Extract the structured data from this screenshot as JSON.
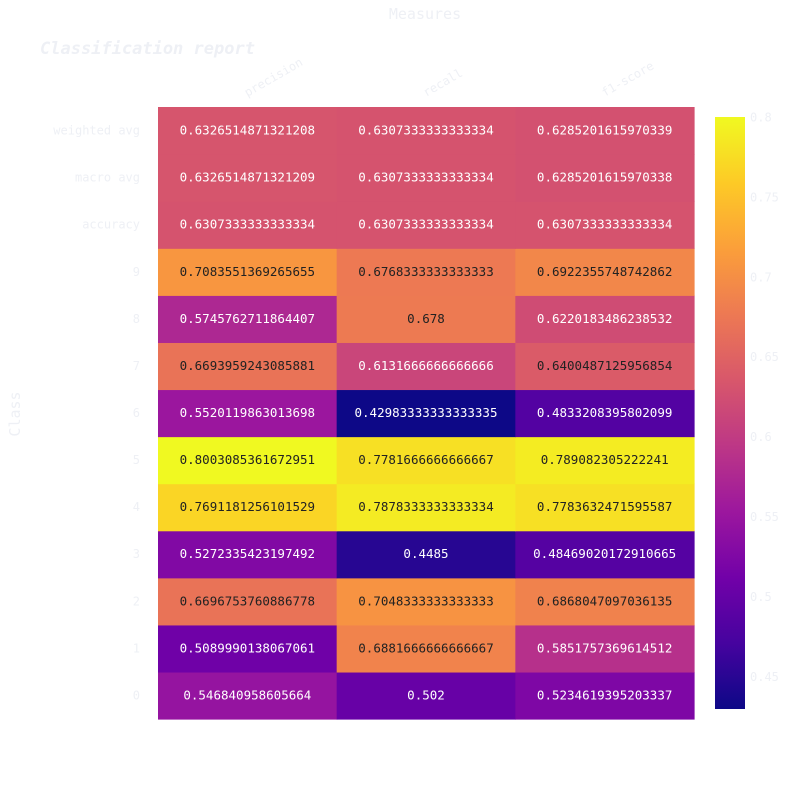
{
  "colors": {
    "muted_text": "#eef0f5",
    "light_cell_text": "#ffffff",
    "dark_cell_text": "#222222",
    "scale": [
      "#0d0887",
      "#46039f",
      "#7201a8",
      "#9c179e",
      "#bd3786",
      "#d8576b",
      "#ed7953",
      "#fb9f3a",
      "#fdca26",
      "#f0f921"
    ]
  },
  "chart_data": {
    "type": "heatmap",
    "title": "Classification report",
    "xlabel": "Measures",
    "ylabel": "Class",
    "x": [
      "precision",
      "recall",
      "f1-score"
    ],
    "y": [
      "0",
      "1",
      "2",
      "3",
      "4",
      "5",
      "6",
      "7",
      "8",
      "9",
      "accuracy",
      "macro avg",
      "weighted avg"
    ],
    "cells": [
      [
        "0.546840958605664",
        "0.502",
        "0.5234619395203337"
      ],
      [
        "0.5089990138067061",
        "0.6881666666666667",
        "0.5851757369614512"
      ],
      [
        "0.6696753760886778",
        "0.7048333333333333",
        "0.6868047097036135"
      ],
      [
        "0.5272335423197492",
        "0.4485",
        "0.48469020172910665"
      ],
      [
        "0.7691181256101529",
        "0.7878333333333334",
        "0.7783632471595587"
      ],
      [
        "0.8003085361672951",
        "0.7781666666666667",
        "0.789082305222241"
      ],
      [
        "0.5520119863013698",
        "0.42983333333333335",
        "0.4833208395802099"
      ],
      [
        "0.6693959243085881",
        "0.6131666666666666",
        "0.6400487125956854"
      ],
      [
        "0.5745762711864407",
        "0.678",
        "0.6220183486238532"
      ],
      [
        "0.7083551369265655",
        "0.6768333333333333",
        "0.6922355748742862"
      ],
      [
        "0.6307333333333334",
        "0.6307333333333334",
        "0.6307333333333334"
      ],
      [
        "0.6326514871321209",
        "0.6307333333333334",
        "0.6285201615970338"
      ],
      [
        "0.6326514871321208",
        "0.6307333333333334",
        "0.6285201615970339"
      ]
    ],
    "zrange": [
      0.42983333333333335,
      0.8003085361672951
    ],
    "colorscale": "plasma",
    "colorbar": {
      "tick_values": [
        0.45,
        0.5,
        0.55,
        0.6,
        0.65,
        0.7,
        0.75,
        0.8
      ],
      "tick_labels": [
        "0.45",
        "0.5",
        "0.55",
        "0.6",
        "0.65",
        "0.7",
        "0.75",
        "0.8"
      ]
    },
    "legend": "colorbar-right"
  }
}
